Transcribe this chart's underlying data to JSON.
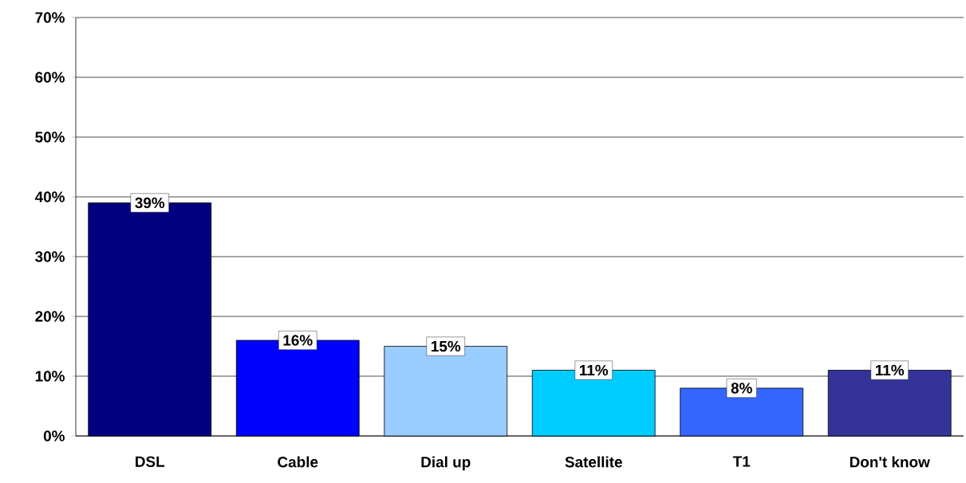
{
  "chart_data": {
    "type": "bar",
    "categories": [
      "DSL",
      "Cable",
      "Dial up",
      "Satellite",
      "T1",
      "Don't know"
    ],
    "values": [
      39,
      16,
      15,
      11,
      8,
      11
    ],
    "value_labels": [
      "39%",
      "16%",
      "15%",
      "11%",
      "8%",
      "11%"
    ],
    "colors": [
      "#000080",
      "#0000ff",
      "#99ccff",
      "#00ccff",
      "#3366ff",
      "#333399"
    ],
    "ylim": [
      0,
      70
    ],
    "yticks": [
      {
        "value": 0,
        "label": "0%"
      },
      {
        "value": 10,
        "label": "10%"
      },
      {
        "value": 20,
        "label": "20%"
      },
      {
        "value": 30,
        "label": "30%"
      },
      {
        "value": 40,
        "label": "40%"
      },
      {
        "value": 50,
        "label": "50%"
      },
      {
        "value": 60,
        "label": "60%"
      },
      {
        "value": 70,
        "label": "70%"
      }
    ],
    "grid": "y"
  }
}
